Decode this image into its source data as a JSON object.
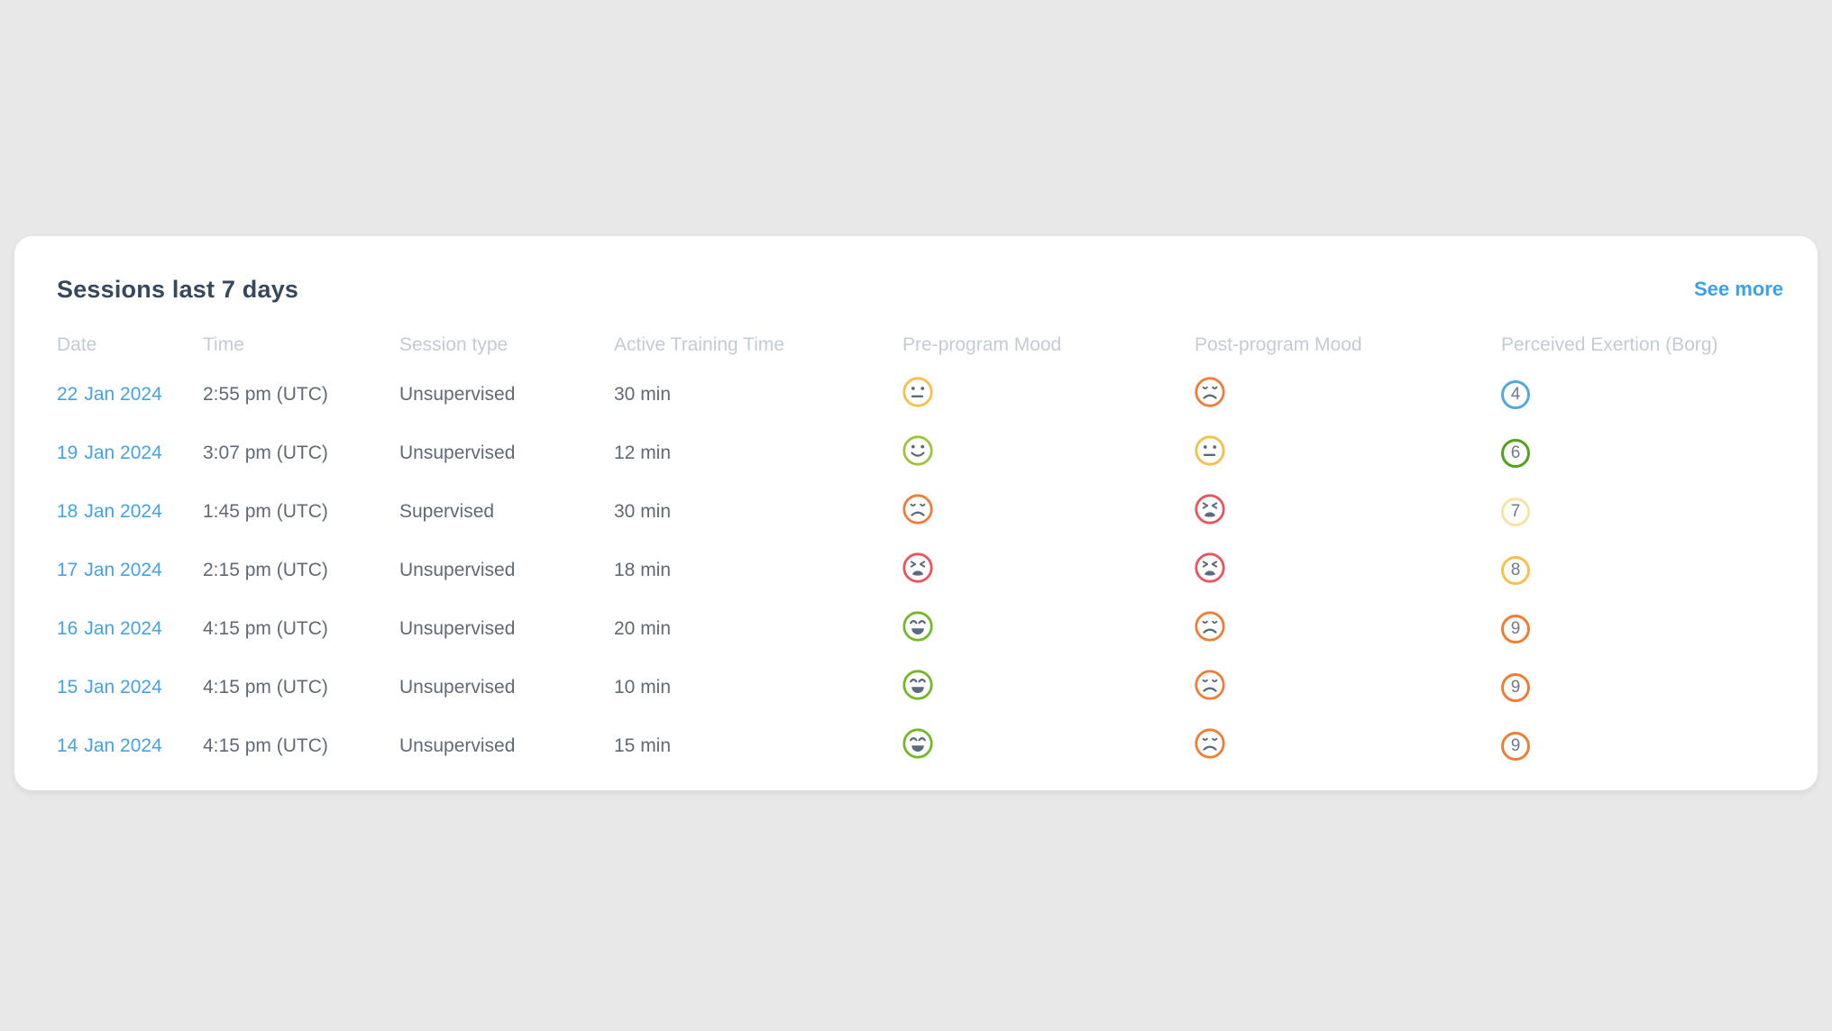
{
  "card": {
    "title": "Sessions last 7 days",
    "see_more_label": "See more"
  },
  "table": {
    "headers": [
      {
        "key": "date",
        "label": "Date"
      },
      {
        "key": "time",
        "label": "Time"
      },
      {
        "key": "session-type",
        "label": "Session type"
      },
      {
        "key": "active-training-time",
        "label": "Active Training Time"
      },
      {
        "key": "pre-program-mood",
        "label": "Pre-program Mood"
      },
      {
        "key": "post-program-mood",
        "label": "Post-program Mood"
      },
      {
        "key": "perceived-exertion",
        "label": "Perceived Exertion (Borg)"
      }
    ],
    "rows": [
      {
        "day": "22",
        "month_year": "Jan 2024",
        "time": "2:55 pm (UTC)",
        "session_type": "Unsupervised",
        "active_time": "30 min",
        "pre_mood": "neutral",
        "post_mood": "sad",
        "borg": "4",
        "borg_color": "#54a8de"
      },
      {
        "day": "19",
        "month_year": "Jan 2024",
        "time": "3:07 pm (UTC)",
        "session_type": "Unsupervised",
        "active_time": "12 min",
        "pre_mood": "happy",
        "post_mood": "neutral",
        "borg": "6",
        "borg_color": "#55a01d"
      },
      {
        "day": "18",
        "month_year": "Jan 2024",
        "time": "1:45 pm (UTC)",
        "session_type": "Supervised",
        "active_time": "30 min",
        "pre_mood": "sad",
        "post_mood": "awful",
        "borg": "7",
        "borg_color": "#f7e3a4"
      },
      {
        "day": "17",
        "month_year": "Jan 2024",
        "time": "2:15 pm (UTC)",
        "session_type": "Unsupervised",
        "active_time": "18 min",
        "pre_mood": "awful",
        "post_mood": "awful",
        "borg": "8",
        "borg_color": "#f7c04a"
      },
      {
        "day": "16",
        "month_year": "Jan 2024",
        "time": "4:15 pm (UTC)",
        "session_type": "Unsupervised",
        "active_time": "20 min",
        "pre_mood": "great",
        "post_mood": "sad",
        "borg": "9",
        "borg_color": "#ef7d35"
      },
      {
        "day": "15",
        "month_year": "Jan 2024",
        "time": "4:15 pm (UTC)",
        "session_type": "Unsupervised",
        "active_time": "10 min",
        "pre_mood": "great",
        "post_mood": "sad",
        "borg": "9",
        "borg_color": "#ef7d35"
      },
      {
        "day": "14",
        "month_year": "Jan 2024",
        "time": "4:15 pm (UTC)",
        "session_type": "Unsupervised",
        "active_time": "15 min",
        "pre_mood": "great",
        "post_mood": "sad",
        "borg": "9",
        "borg_color": "#ef7d35"
      }
    ]
  },
  "mood_colors": {
    "great": "#74b727",
    "happy": "#9fc43c",
    "neutral": "#f3c04a",
    "sad": "#ef7d35",
    "awful": "#e8555c"
  },
  "colors": {
    "page_background": "#e8e8e8",
    "card_background": "#ffffff",
    "title_text": "#35495e",
    "header_text": "#c4cbd4",
    "body_text": "#5f6a75",
    "date_link": "#45a3e3",
    "see_more_link": "#3ba1e8",
    "mood_feature": "#5c6a7d",
    "borg_number": "#6e7b8b"
  }
}
